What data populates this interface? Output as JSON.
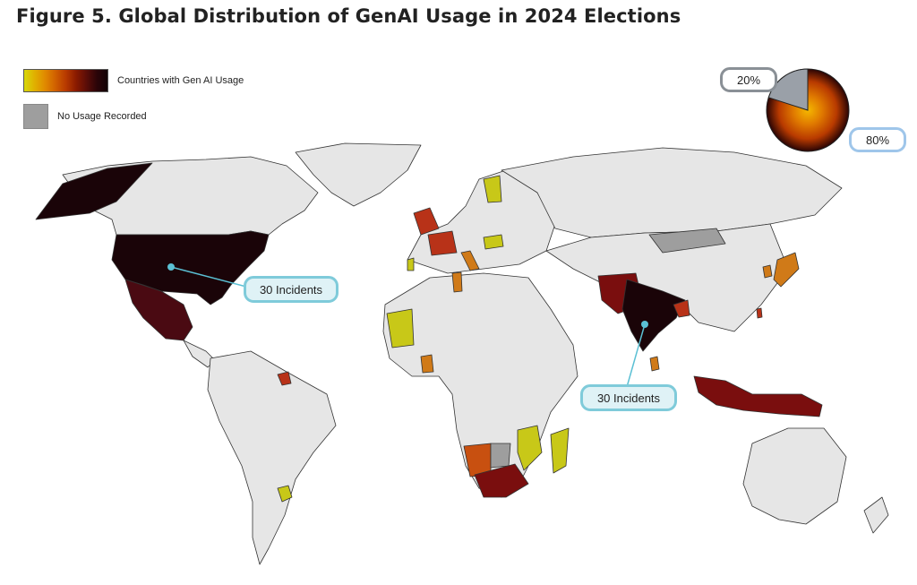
{
  "figure": {
    "title": "Figure 5. Global Distribution of GenAI Usage in 2024 Elections"
  },
  "legend": {
    "usage_label": "Countries with Gen AI Usage",
    "no_usage_label": "No Usage Recorded"
  },
  "callouts": [
    {
      "text": "30 Incidents"
    },
    {
      "text": "30 Incidents"
    }
  ],
  "donut": {
    "slices": [
      {
        "label": "20%",
        "value": 20,
        "color": "#9aa0a8"
      },
      {
        "label": "80%",
        "value": 80,
        "color": "#d05a00"
      }
    ]
  },
  "colors": {
    "land": "#e6e6e6",
    "border": "#333333",
    "no_usage": "#9e9e9e",
    "yellow": "#c8c818",
    "orange": "#d07a18",
    "red": "#b83218",
    "maroon": "#7a0e0e",
    "black": "#1a0408",
    "callout": "#5bc0d4"
  }
}
